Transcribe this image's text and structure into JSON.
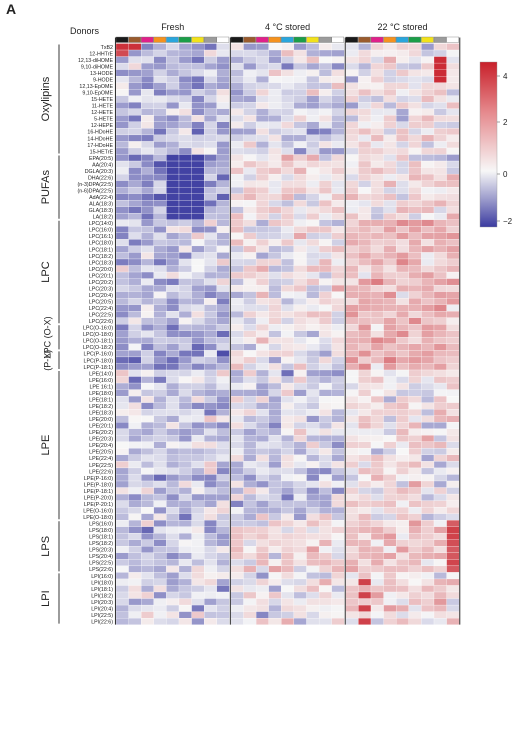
{
  "panel_label": "A",
  "donors_label": "Donors",
  "chart_data": {
    "type": "heatmap",
    "groups": [
      "Fresh",
      "4 °C stored",
      "22 °C stored"
    ],
    "donor_colors": [
      "#1a1a1a",
      "#9a5b2e",
      "#e0218a",
      "#f5921e",
      "#2aa6dc",
      "#1b9e48",
      "#f2e21b",
      "#9b9b9b",
      "#ffffff"
    ],
    "colorbar": {
      "min": -2,
      "max": 4.5,
      "ticks": [
        "4",
        "2",
        "0",
        "−2"
      ],
      "low_color": "#3b3ba0",
      "mid_color": "#f7f7f7",
      "high_color": "#c8202a"
    },
    "categories": [
      {
        "name": "Oxylipins",
        "rows": [
          "TxB2",
          "12-HHTrE",
          "12,13-diHOME",
          "9,10-diHOME",
          "13-HODE",
          "9-HODE",
          "12,13-EpOME",
          "9,10-EpOME",
          "15-HETE",
          "11-HETE",
          "12-HETE",
          "5-HETE",
          "12-HEPE",
          "16-HDoHE",
          "14-HDoHE",
          "17-HDoHE",
          "15-HETrE"
        ]
      },
      {
        "name": "PUFAs",
        "rows": [
          "EPA(20:5)",
          "AA(20:4)",
          "DGLA(20:3)",
          "DHA(22:6)",
          "(n-3)DPA(22:5)",
          "(n-6)DPA(22:5)",
          "AdA(22:4)",
          "ALA(18:3)",
          "GLA(18:3)",
          "LA(18:2)"
        ]
      },
      {
        "name": "LPC",
        "rows": [
          "LPC(14:0)",
          "LPC(16:0)",
          "LPC(16:1)",
          "LPC(18:0)",
          "LPC(18:1)",
          "LPC(18:2)",
          "LPC(18:3)",
          "LPC(20:0)",
          "LPC(20:1)",
          "LPC(20:2)",
          "LPC(20:3)",
          "LPC(20:4)",
          "LPC(20:5)",
          "LPC(22:4)",
          "LPC(22:5)",
          "LPC(22:6)"
        ]
      },
      {
        "name": "LPC (O-X)",
        "rows": [
          "LPC(O-16:0)",
          "LPC(O-18:0)",
          "LPC(O-18:1)",
          "LPC(O-18:2)"
        ]
      },
      {
        "name": "(P-X)",
        "rows": [
          "LPC(P-16:0)",
          "LPC(P-18:0)",
          "LPC(P-18:1)"
        ]
      },
      {
        "name": "LPE",
        "rows": [
          "LPE(14:0)",
          "LPE(16:0)",
          "LPE 16:1)",
          "LPE(18:0)",
          "LPE(18:1)",
          "LPE(18:2)",
          "LPE(18:3)",
          "LPE(20:0)",
          "LPE(20:1)",
          "LPE(20:2)",
          "LPE(20:3)",
          "LPE(20:4)",
          "LPE(20:5)",
          "LPE(22:4)",
          "LPE(22:5)",
          "LPE(22:6)",
          "LPE(P-16:0)",
          "LPE(P-18:0)",
          "LPE(P-18:1)",
          "LPE(P-20:0)",
          "LPE(P-20:1)",
          "LPE(O-16:0)",
          "LPE(O-18:0)"
        ]
      },
      {
        "name": "LPS",
        "rows": [
          "LPS(16:0)",
          "LPS(18:0)",
          "LPS(18:1)",
          "LPS(18:2)",
          "LPS(20:3)",
          "LPS(20:4)",
          "LPS(22:5)",
          "LPS(22:6)"
        ]
      },
      {
        "name": "LPI",
        "rows": [
          "LPI(16:0)",
          "LPI(18:0)",
          "LPI(18:1)",
          "LPI(18:2)",
          "LPI(20:3)",
          "LPI(20:4)",
          "LPI(22:5)",
          "LPI(22:6)"
        ]
      }
    ]
  }
}
